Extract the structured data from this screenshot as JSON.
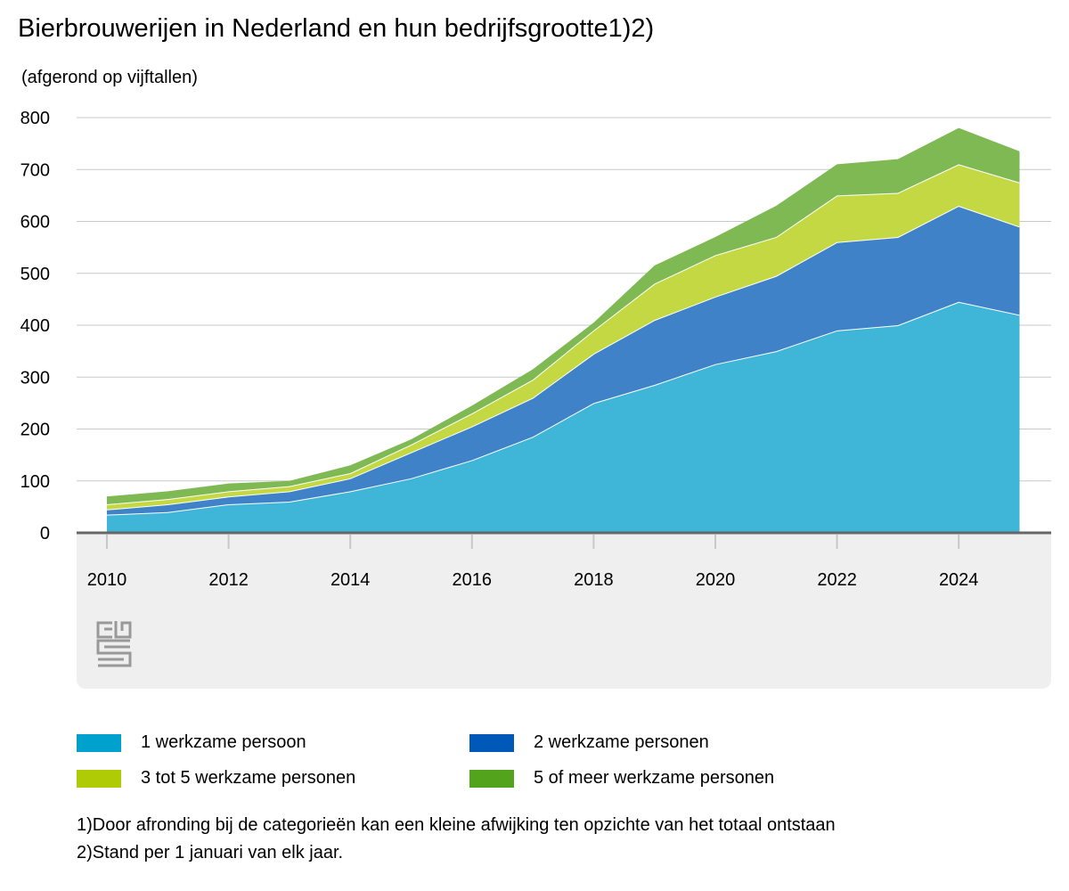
{
  "chart_data": {
    "type": "area",
    "stacked": true,
    "title": "Bierbrouwerijen in Nederland en hun bedrijfsgrootte1)2)",
    "subtitle": "(afgerond op vijftallen)",
    "xlabel": "",
    "ylabel": "",
    "x": [
      2010,
      2011,
      2012,
      2013,
      2014,
      2015,
      2016,
      2017,
      2018,
      2019,
      2020,
      2021,
      2022,
      2023,
      2024,
      2025
    ],
    "x_tick_labels": [
      "2010",
      "2012",
      "2014",
      "2016",
      "2018",
      "2020",
      "2022",
      "2024"
    ],
    "ylim": [
      0,
      800
    ],
    "y_tick_labels": [
      "0",
      "100",
      "200",
      "300",
      "400",
      "500",
      "600",
      "700",
      "800"
    ],
    "grid": true,
    "legend_position": "bottom",
    "series": [
      {
        "name": "1 werkzame persoon",
        "color": "#00a1cd",
        "values": [
          35,
          40,
          55,
          60,
          80,
          105,
          140,
          185,
          250,
          285,
          325,
          350,
          390,
          400,
          445,
          420
        ]
      },
      {
        "name": "2 werkzame personen",
        "color": "#0058b8",
        "values": [
          10,
          15,
          15,
          20,
          25,
          50,
          65,
          75,
          95,
          125,
          130,
          145,
          170,
          170,
          185,
          170
        ]
      },
      {
        "name": "3 tot 5 werkzame personen",
        "color": "#afcb05",
        "values": [
          10,
          10,
          10,
          10,
          10,
          15,
          25,
          35,
          45,
          70,
          80,
          75,
          90,
          85,
          80,
          85
        ]
      },
      {
        "name": "5 of meer werkzame personen",
        "color": "#53a31d",
        "values": [
          15,
          15,
          15,
          10,
          15,
          10,
          15,
          20,
          15,
          35,
          35,
          60,
          60,
          65,
          70,
          60
        ]
      }
    ]
  },
  "footnotes": [
    "1)Door afronding bij de categorieën kan een kleine afwijking ten opzichte van het totaal ontstaan",
    "2)Stand per 1 januari van elk jaar."
  ],
  "logo": "cbs"
}
